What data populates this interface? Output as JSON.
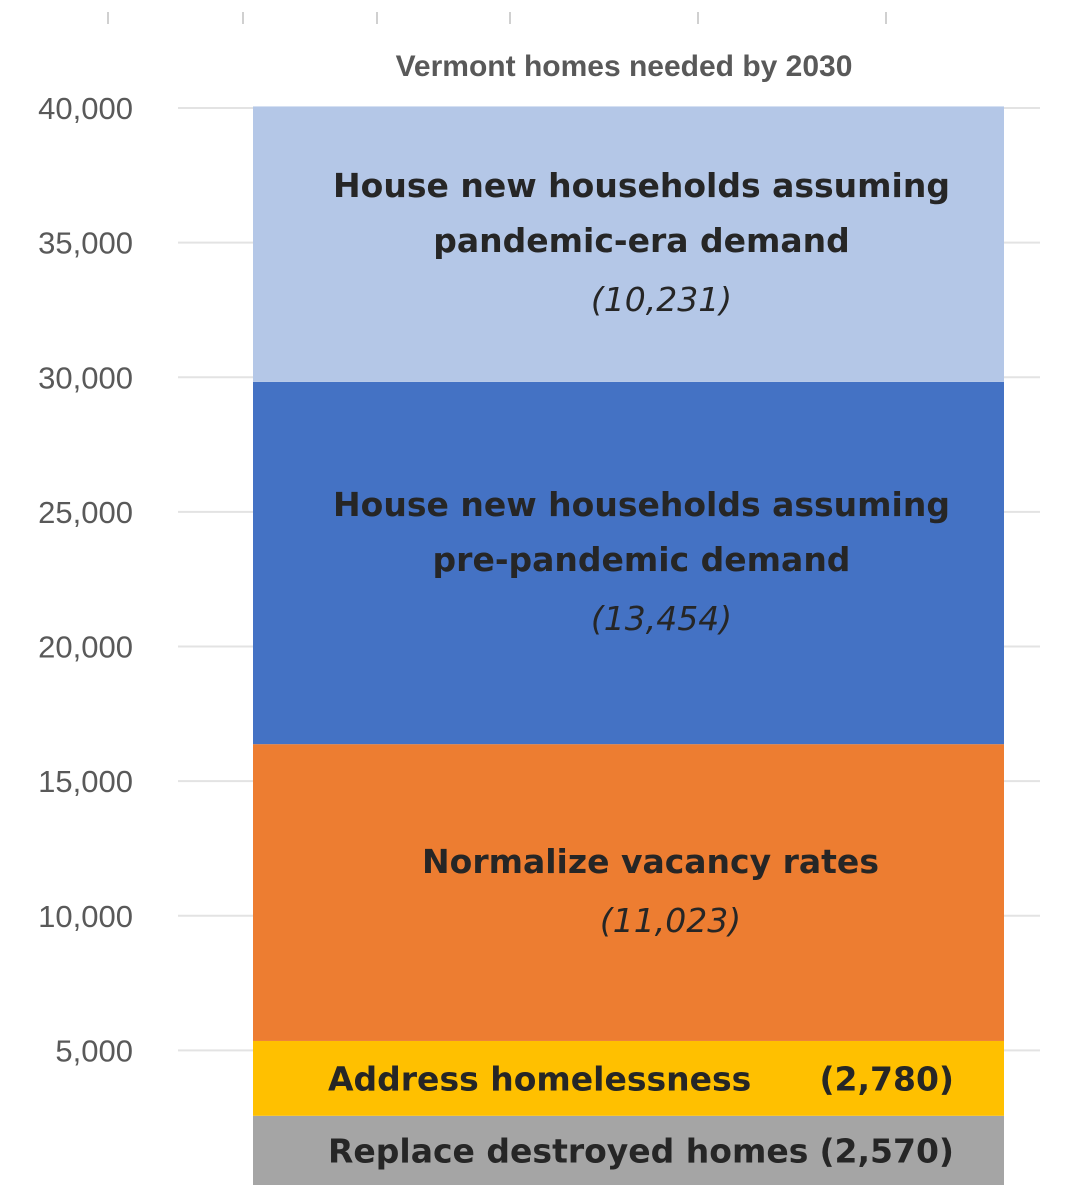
{
  "chart_data": {
    "type": "bar",
    "stacked": true,
    "title": "Vermont homes needed by 2030",
    "ylim": [
      0,
      40000
    ],
    "y_ticks": [
      "5,000",
      "10,000",
      "15,000",
      "20,000",
      "25,000",
      "30,000",
      "35,000",
      "40,000"
    ],
    "grid": true,
    "segments": [
      {
        "label": "Replace destroyed homes",
        "value": 2570,
        "value_text": "(2,570)",
        "color": "#a5a5a5",
        "label_layout": "inline"
      },
      {
        "label": "Address homelessness",
        "value": 2780,
        "value_text": "(2,780)",
        "color": "#ffc000",
        "label_layout": "inline"
      },
      {
        "label": "Normalize vacancy rates",
        "value": 11023,
        "value_text": "(11,023)",
        "color": "#ed7d31",
        "label_layout": "stacked"
      },
      {
        "label": "House new households assuming pre-pandemic demand",
        "label_lines": [
          "House new households assuming",
          "pre-pandemic demand"
        ],
        "value": 13454,
        "value_text": "(13,454)",
        "color": "#4472c4",
        "label_layout": "stacked"
      },
      {
        "label": "House new households assuming pandemic-era demand",
        "label_lines": [
          "House new households assuming",
          "pandemic-era demand"
        ],
        "value": 10231,
        "value_text": "(10,231)",
        "color": "#b4c7e7",
        "label_layout": "stacked"
      }
    ]
  }
}
